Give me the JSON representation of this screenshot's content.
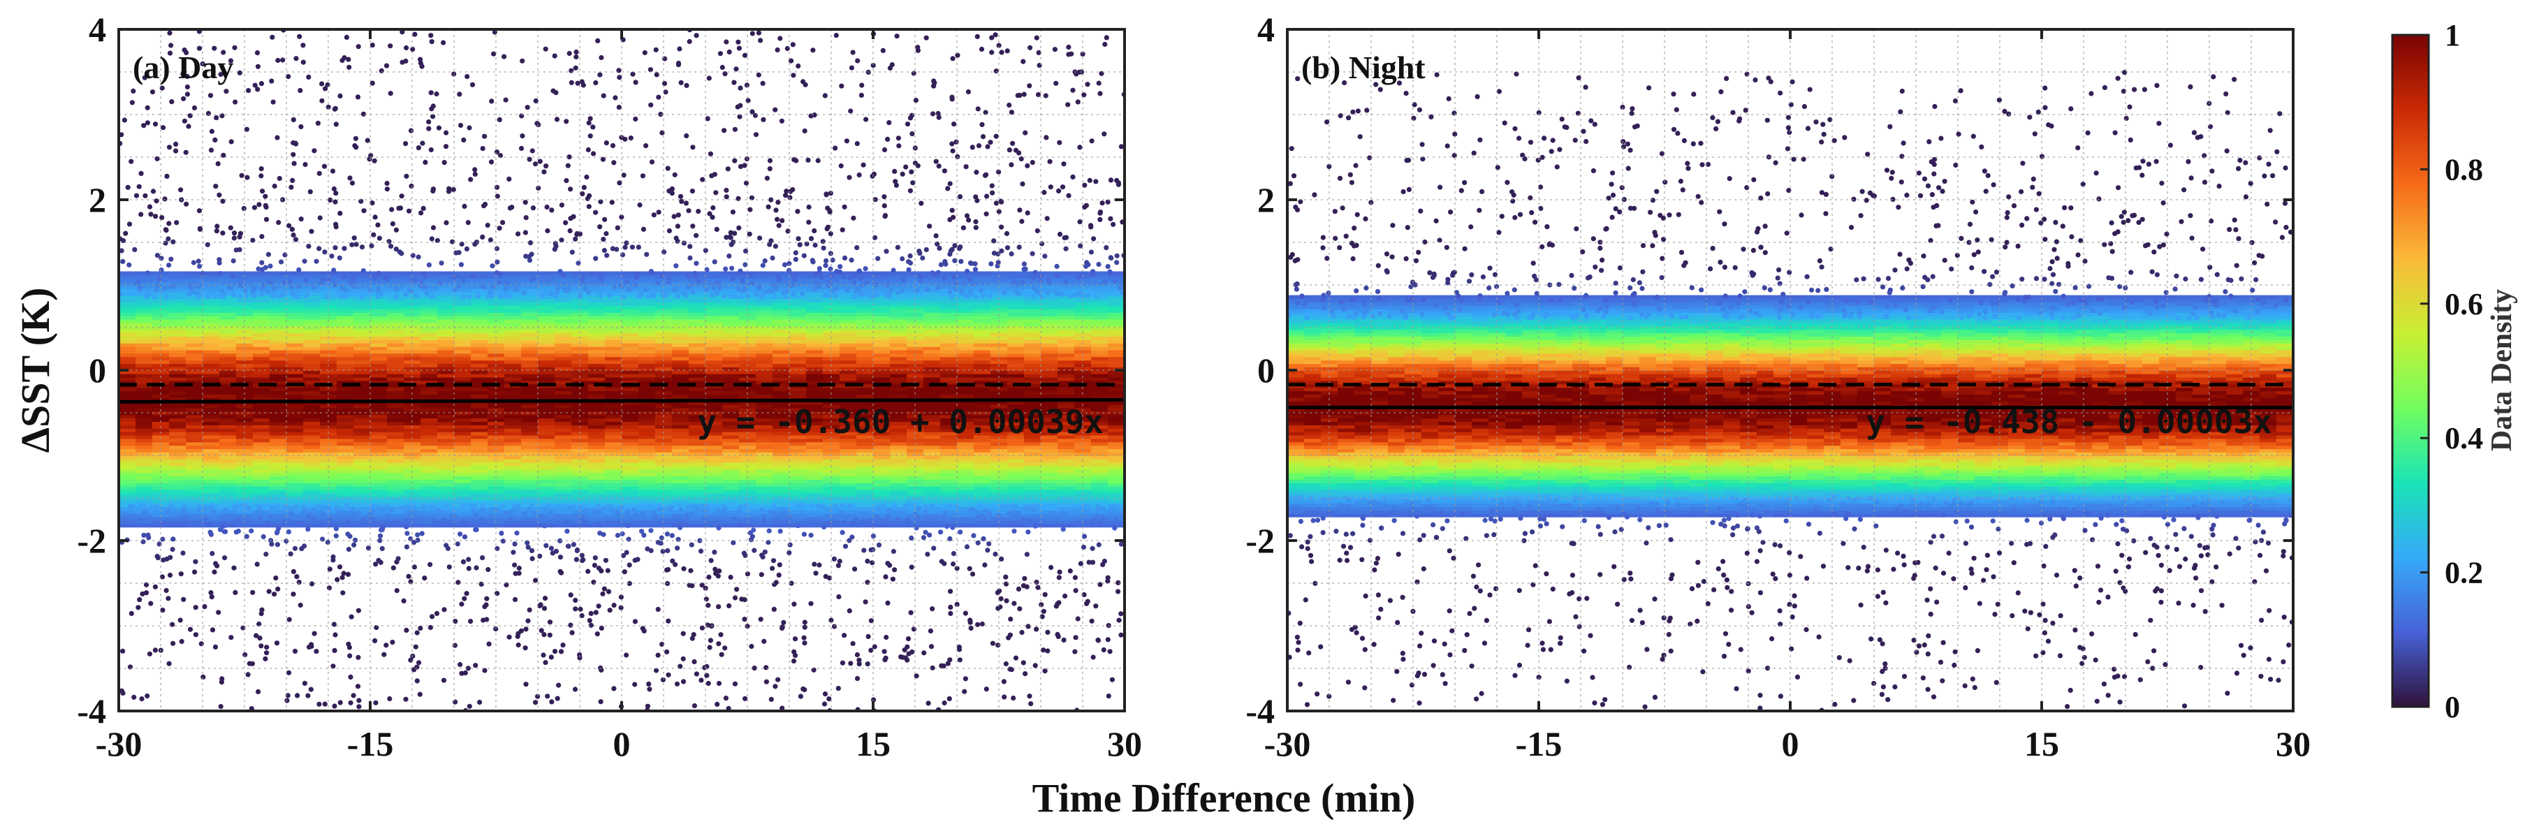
{
  "chart_data": [
    {
      "type": "scatter",
      "panel_label": "(a) Day",
      "xlabel": "Time Difference (min)",
      "ylabel": "ΔSST (K)",
      "xlim": [
        -30,
        30
      ],
      "ylim": [
        -4,
        4
      ],
      "x_ticks": [
        -30,
        -15,
        0,
        15,
        30
      ],
      "x_tick_labels": [
        "-30",
        "-15",
        "0",
        "15",
        "30"
      ],
      "y_ticks": [
        -4,
        -2,
        0,
        2,
        4
      ],
      "y_tick_labels": [
        "-4",
        "-2",
        "0",
        "2",
        "4"
      ],
      "grid": true,
      "density": {
        "center": -0.36,
        "spread": 0.72,
        "outlier_level": 0.18
      },
      "fit": {
        "intercept": -0.36,
        "slope": 0.00039,
        "label": "y = -0.360 + 0.00039x",
        "style": "solid"
      },
      "reference_line": {
        "y": -0.17,
        "style": "dashed"
      }
    },
    {
      "type": "scatter",
      "panel_label": "(b) Night",
      "xlabel": "Time Difference (min)",
      "ylabel": "",
      "xlim": [
        -30,
        30
      ],
      "ylim": [
        -4,
        4
      ],
      "x_ticks": [
        -30,
        -15,
        0,
        15,
        30
      ],
      "x_tick_labels": [
        "-30",
        "-15",
        "0",
        "15",
        "30"
      ],
      "y_ticks": [
        -4,
        -2,
        0,
        2,
        4
      ],
      "y_tick_labels": [
        "-4",
        "-2",
        "0",
        "2",
        "4"
      ],
      "grid": true,
      "density": {
        "center": -0.44,
        "spread": 0.62,
        "outlier_level": 0.1
      },
      "fit": {
        "intercept": -0.438,
        "slope": -3e-05,
        "label": "y = -0.438 - 0.00003x",
        "style": "solid"
      },
      "reference_line": {
        "y": -0.17,
        "style": "dashed"
      }
    }
  ],
  "shared_xlabel": "Time Difference (min)",
  "colorbar": {
    "title": "Data Density",
    "range": [
      0,
      1
    ],
    "ticks": [
      0,
      0.2,
      0.4,
      0.6,
      0.8,
      1
    ],
    "tick_labels": [
      "0",
      "0.2",
      "0.4",
      "0.6",
      "0.8",
      "1"
    ],
    "colormap": [
      "#30123b",
      "#4662d7",
      "#36aaf9",
      "#1ae4b6",
      "#72fe5e",
      "#c8ef34",
      "#faba39",
      "#f66b19",
      "#ca2a04",
      "#7a0403"
    ]
  }
}
